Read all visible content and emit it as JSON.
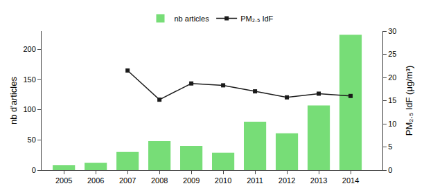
{
  "chart_data": {
    "type": "bar",
    "x": [
      2005,
      2006,
      2007,
      2008,
      2009,
      2010,
      2011,
      2012,
      2013,
      2014
    ],
    "xlim": [
      2004.3,
      2015.0
    ],
    "xticks": [
      2005,
      2006,
      2007,
      2008,
      2009,
      2010,
      2011,
      2012,
      2013,
      2014
    ],
    "ylabel": "nb d'articles",
    "ylim": [
      0,
      230
    ],
    "yticks": [
      0,
      50,
      100,
      150,
      200
    ],
    "y2label": "PM₂.₅ IdF (μg/m³)",
    "y2lim": [
      0,
      30
    ],
    "y2ticks": [
      0,
      5,
      10,
      15,
      20,
      25,
      30
    ],
    "grid": false,
    "legend": "top",
    "series": [
      {
        "name": "nb articles",
        "type": "bar",
        "color": "#77dd77",
        "values": [
          8,
          12,
          30,
          48,
          40,
          29,
          80,
          61,
          107,
          224
        ]
      },
      {
        "name": "PM₂.₅ IdF",
        "type": "line",
        "color": "#1a1a1a",
        "marker": "square",
        "axis": "y2",
        "values": [
          null,
          null,
          21.5,
          15.2,
          18.7,
          18.3,
          17.0,
          15.7,
          16.5,
          16.0
        ]
      }
    ]
  }
}
